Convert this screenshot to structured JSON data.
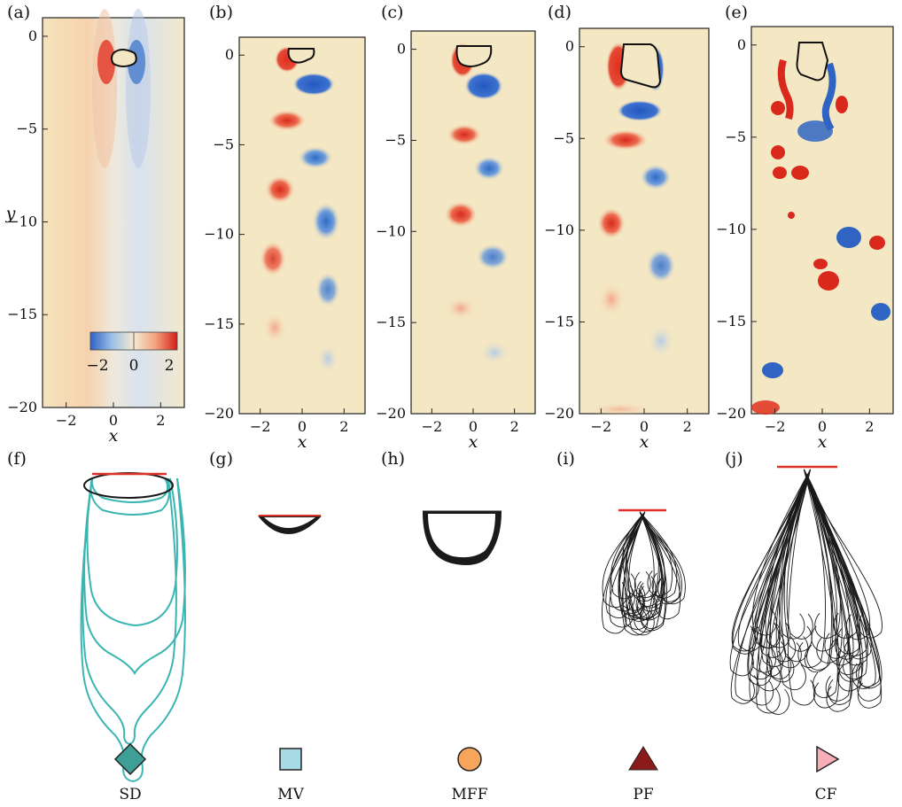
{
  "panel_labels": [
    "(a)",
    "(b)",
    "(c)",
    "(d)",
    "(e)",
    "(f)",
    "(g)",
    "(h)",
    "(i)",
    "(j)"
  ],
  "axes": {
    "xlabel": "x",
    "ylabel": "y",
    "xticks": [
      -2,
      0,
      2
    ],
    "yticks": [
      0,
      -5,
      -10,
      -15,
      -20
    ],
    "xtick_labels": [
      "−2",
      "0",
      "2"
    ],
    "ytick_labels": [
      "0",
      "−5",
      "−10",
      "−15",
      "−20"
    ],
    "xlim": [
      -3,
      3
    ],
    "ylim": [
      -20,
      1
    ]
  },
  "colorbar": {
    "ticks": [
      -2,
      0,
      2
    ],
    "tick_labels": [
      "−2",
      "0",
      "2"
    ],
    "colors": {
      "negative": "#3e74c9",
      "zero": "#f4e7c3",
      "positive": "#dc2a1c"
    }
  },
  "markers": [
    {
      "label": "SD",
      "shape": "diamond",
      "color": "#3f9f96"
    },
    {
      "label": "MV",
      "shape": "square",
      "color": "#a9dbe7"
    },
    {
      "label": "MFF",
      "shape": "circle",
      "color": "#f7a55a"
    },
    {
      "label": "PF",
      "shape": "triangle-up",
      "color": "#8b1a1a"
    },
    {
      "label": "CF",
      "shape": "triangle-right",
      "color": "#f6aeb7"
    }
  ],
  "colors": {
    "background_field": "#f4e7c3",
    "leading_edge": "#e0302a",
    "trace_teal": "#3bb5b2",
    "trace_black": "#1a1a1a"
  }
}
